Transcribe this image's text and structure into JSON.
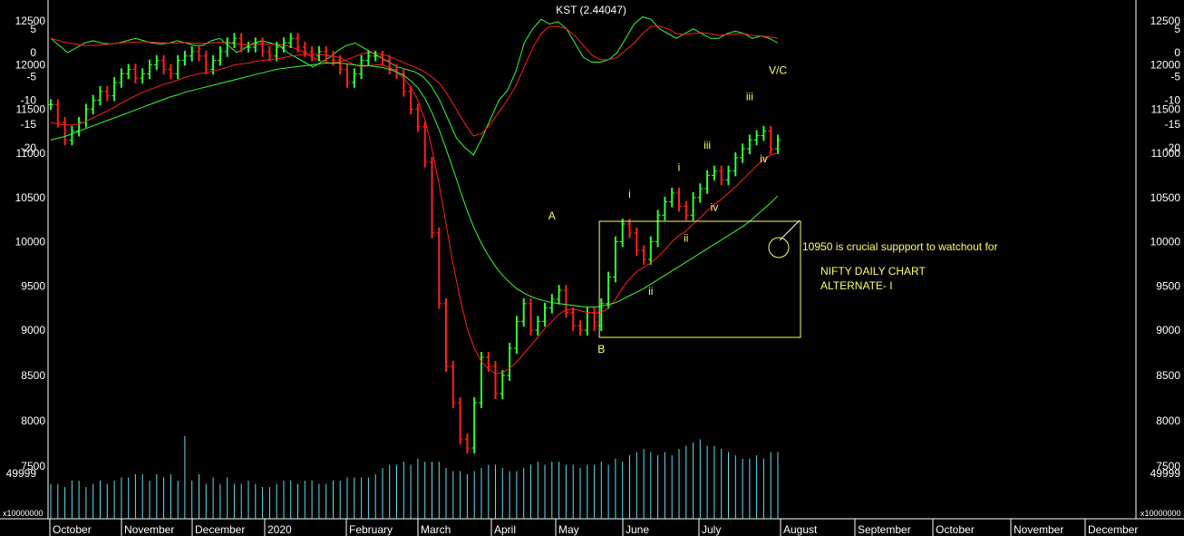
{
  "colors": {
    "background": "#000000",
    "up_bar": "#33ff33",
    "down_bar": "#ff2020",
    "ma_fast": "#ff2020",
    "ma_slow": "#33ff33",
    "kst_line": "#33ff33",
    "kst_signal": "#ff2020",
    "volume": "#66ddee",
    "annotation": "#ffff66",
    "text": "#ffffff"
  },
  "chart_data": [
    {
      "type": "line",
      "panel": "kst",
      "title": "KST (2.44047)",
      "y_ticks": [
        "5",
        "0",
        "-5",
        "-10",
        "-15",
        "-20"
      ],
      "ylim": [
        -22,
        9
      ],
      "series": [
        {
          "values": [
            3,
            1.5,
            0,
            1,
            2,
            2.5,
            2,
            1.8,
            2,
            2.5,
            3,
            2.5,
            2,
            1.8,
            2,
            2.5,
            2,
            1.5,
            1.5,
            2.5,
            3,
            1.5,
            0,
            1,
            2,
            2.5,
            2,
            1.5,
            0,
            -1,
            -2,
            -3,
            -2,
            -1,
            0.5,
            1.5,
            2,
            1,
            0,
            -1,
            -2,
            -3,
            -3.5,
            -4,
            -5,
            -7,
            -10,
            -14,
            -18,
            -20,
            -21.5,
            -18,
            -14,
            -10,
            -8,
            -4,
            2,
            5,
            7,
            6,
            6.5,
            5,
            2,
            -1,
            -2,
            -2,
            -1.5,
            0,
            3,
            6,
            7.5,
            7,
            5,
            4,
            3,
            4,
            5,
            4,
            3,
            3,
            4,
            4.5,
            4,
            3,
            3.5,
            3,
            2
          ]
        },
        {
          "values": [
            3,
            2.5,
            2,
            1.8,
            1.5,
            1.5,
            1.6,
            1.8,
            2,
            2.1,
            2.2,
            2.3,
            2.2,
            2.1,
            2,
            2,
            2.1,
            2,
            1.9,
            2,
            2.2,
            2.1,
            1.8,
            1.6,
            1.6,
            1.8,
            1.8,
            1.7,
            1.4,
            0.8,
            0,
            -1,
            -1.8,
            -2.2,
            -2,
            -1.5,
            -0.8,
            -0.2,
            0,
            -0.3,
            -0.8,
            -1.5,
            -2.3,
            -3,
            -3.8,
            -5,
            -6.5,
            -9,
            -12,
            -15,
            -17.5,
            -17,
            -15,
            -12.5,
            -10,
            -7,
            -3,
            1,
            4,
            5.5,
            5.5,
            5,
            3.5,
            1.5,
            -0.5,
            -1.5,
            -1.5,
            -1,
            0.5,
            2,
            4,
            5.5,
            5.5,
            5,
            4,
            3.8,
            4,
            4.2,
            4,
            3.6,
            3.8,
            3.9,
            4,
            3.6,
            3.5,
            3.3,
            3
          ]
        }
      ]
    },
    {
      "type": "candlestick",
      "panel": "price",
      "y_ticks": [
        "12500",
        "12000",
        "11500",
        "11000",
        "10500",
        "10000",
        "9500",
        "9000",
        "8500",
        "8000",
        "7500"
      ],
      "series": [
        {
          "name": "price",
          "values": [
            11550,
            11350,
            11150,
            11250,
            11350,
            11500,
            11600,
            11700,
            11650,
            11800,
            11900,
            11950,
            11850,
            11900,
            12000,
            12050,
            11950,
            11900,
            12050,
            12100,
            12150,
            12100,
            11950,
            12050,
            12150,
            12250,
            12300,
            12200,
            12200,
            12250,
            12150,
            12100,
            12200,
            12250,
            12300,
            12200,
            12150,
            12100,
            12150,
            12100,
            12050,
            11950,
            11800,
            11900,
            12050,
            12100,
            12100,
            12050,
            11950,
            11900,
            11700,
            11500,
            11300,
            10900,
            10100,
            9300,
            8600,
            8200,
            7800,
            7700,
            8200,
            8700,
            8600,
            8300,
            8500,
            8800,
            9100,
            9300,
            9000,
            9100,
            9250,
            9350,
            9450,
            9200,
            9050,
            9000,
            9200,
            9050,
            9300,
            9600,
            10000,
            10200,
            10100,
            9900,
            9800,
            10000,
            10300,
            10450,
            10550,
            10400,
            10300,
            10500,
            10600,
            10750,
            10800,
            10700,
            10800,
            10950,
            11050,
            11150,
            11200,
            11250,
            11050,
            11150
          ]
        },
        {
          "name": "MA fast",
          "values": [
            11350,
            11330,
            11320,
            11320,
            11330,
            11360,
            11400,
            11440,
            11480,
            11520,
            11570,
            11610,
            11650,
            11690,
            11720,
            11750,
            11780,
            11800,
            11830,
            11860,
            11880,
            11900,
            11910,
            11930,
            11950,
            11970,
            12000,
            12010,
            12020,
            12040,
            12050,
            12060,
            12070,
            12080,
            12100,
            12110,
            12120,
            12120,
            12120,
            12110,
            12100,
            12080,
            12040,
            12000,
            11980,
            11990,
            12000,
            12000,
            11970,
            11920,
            11850,
            11750,
            11600,
            11380,
            11050,
            10650,
            10200,
            9750,
            9350,
            9020,
            8800,
            8650,
            8570,
            8520,
            8530,
            8580,
            8650,
            8740,
            8830,
            8920,
            9020,
            9100,
            9180,
            9230,
            9240,
            9220,
            9200,
            9190,
            9200,
            9250,
            9350,
            9480,
            9580,
            9660,
            9710,
            9760,
            9830,
            9910,
            10000,
            10070,
            10120,
            10200,
            10270,
            10350,
            10420,
            10480,
            10550,
            10620,
            10700,
            10780,
            10860,
            10930,
            10980,
            11000
          ]
        },
        {
          "name": "MA slow",
          "values": [
            11150,
            11170,
            11190,
            11220,
            11250,
            11280,
            11310,
            11340,
            11370,
            11400,
            11430,
            11460,
            11490,
            11520,
            11550,
            11580,
            11610,
            11640,
            11660,
            11690,
            11710,
            11730,
            11750,
            11770,
            11790,
            11810,
            11830,
            11850,
            11870,
            11890,
            11910,
            11930,
            11950,
            11960,
            11970,
            11980,
            11990,
            12000,
            12010,
            12020,
            12020,
            12020,
            12010,
            12000,
            11990,
            11990,
            11980,
            11970,
            11950,
            11920,
            11880,
            11820,
            11740,
            11620,
            11460,
            11270,
            11050,
            10820,
            10580,
            10350,
            10150,
            9980,
            9840,
            9720,
            9620,
            9540,
            9470,
            9420,
            9380,
            9350,
            9330,
            9310,
            9300,
            9290,
            9280,
            9270,
            9260,
            9260,
            9270,
            9290,
            9310,
            9350,
            9390,
            9430,
            9470,
            9520,
            9570,
            9620,
            9670,
            9720,
            9770,
            9820,
            9870,
            9920,
            9970,
            10020,
            10070,
            10120,
            10170,
            10230,
            10300,
            10370,
            10440,
            10520
          ]
        }
      ],
      "annotations": [
        {
          "text": "A",
          "value": 10250
        },
        {
          "text": "B",
          "value": 8750
        },
        {
          "text": "i",
          "value": 10500
        },
        {
          "text": "ii",
          "value": 9400
        },
        {
          "text": "i",
          "value": 10800
        },
        {
          "text": "ii",
          "value": 10000
        },
        {
          "text": "iii",
          "value": 11050
        },
        {
          "text": "iv",
          "value": 10350
        },
        {
          "text": "iii",
          "value": 11600
        },
        {
          "text": "iv",
          "value": 10900
        },
        {
          "text": "V/C",
          "value": 11900
        }
      ],
      "notes": [
        "10950 is crucial suppport to watchout for",
        "NIFTY DAILY CHART",
        "ALTERNATE- I"
      ]
    },
    {
      "type": "bar",
      "panel": "volume",
      "y_ticks": [
        "49999"
      ],
      "scale_label": "x10000000",
      "values": [
        0.55,
        0.55,
        0.5,
        0.6,
        0.6,
        0.5,
        0.55,
        0.6,
        0.55,
        0.6,
        0.65,
        0.65,
        0.7,
        0.7,
        0.6,
        0.7,
        0.65,
        0.7,
        0.6,
        1.3,
        0.6,
        0.7,
        0.55,
        0.65,
        0.55,
        0.65,
        0.55,
        0.55,
        0.6,
        0.55,
        0.5,
        0.5,
        0.55,
        0.6,
        0.6,
        0.55,
        0.6,
        0.6,
        0.55,
        0.55,
        0.6,
        0.6,
        0.65,
        0.65,
        0.65,
        0.65,
        0.7,
        0.8,
        0.85,
        0.85,
        0.9,
        0.85,
        0.95,
        0.9,
        0.9,
        0.9,
        0.8,
        0.75,
        0.75,
        0.7,
        0.75,
        0.8,
        0.85,
        0.85,
        0.8,
        0.75,
        0.75,
        0.8,
        0.85,
        0.9,
        0.85,
        0.9,
        0.9,
        0.85,
        0.85,
        0.8,
        0.85,
        0.85,
        0.9,
        0.85,
        0.95,
        0.9,
        1.0,
        1.05,
        1.1,
        1.05,
        1.0,
        1.05,
        1.0,
        1.1,
        1.15,
        1.2,
        1.25,
        1.15,
        1.15,
        1.1,
        1.05,
        1.0,
        0.95,
        0.95,
        1.0,
        0.95,
        1.05,
        1.05
      ]
    }
  ],
  "x_axis": {
    "labels": [
      "October",
      "November",
      "December",
      "2020",
      "February",
      "March",
      "April",
      "May",
      "June",
      "July",
      "August",
      "September",
      "October",
      "November",
      "December"
    ]
  },
  "right_axis": {
    "kst_ticks": [
      "5",
      "0",
      "-5",
      "-10",
      "-15",
      "-20"
    ],
    "price_ticks": [
      "12500",
      "12000",
      "11500",
      "11000",
      "10500",
      "10000",
      "9500",
      "9000",
      "8500",
      "8000",
      "7500"
    ],
    "volume_ticks": [
      "49999"
    ],
    "scale_label": "x10000000"
  }
}
